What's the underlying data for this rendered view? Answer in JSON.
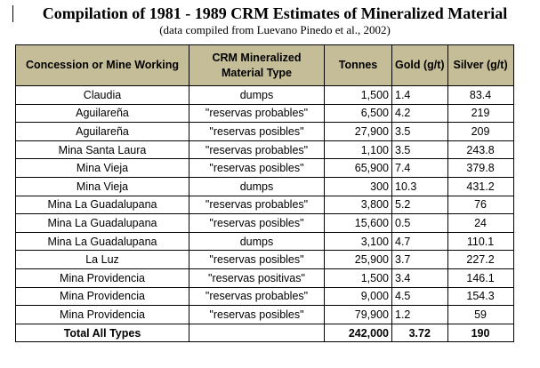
{
  "document": {
    "title": "Compilation of 1981 - 1989 CRM Estimates of Mineralized Material",
    "subtitle": "(data compiled from Luevano Pinedo et al., 2002)"
  },
  "table": {
    "header_fill_color": "#c4bd97",
    "headers": {
      "concession": "Concession or Mine Working",
      "material_type": "CRM Mineralized Material Type",
      "tonnes": "Tonnes",
      "gold": "Gold (g/t)",
      "silver": "Silver (g/t)"
    },
    "rows": [
      {
        "concession": "Claudia",
        "material_type": "dumps",
        "tonnes": "1,500",
        "gold": "1.4",
        "silver": "83.4"
      },
      {
        "concession": "Aguilareña",
        "material_type": "\"reservas probables\"",
        "tonnes": "6,500",
        "gold": "4.2",
        "silver": "219"
      },
      {
        "concession": "Aguilareña",
        "material_type": "\"reservas posibles\"",
        "tonnes": "27,900",
        "gold": "3.5",
        "silver": "209"
      },
      {
        "concession": "Mina Santa Laura",
        "material_type": "\"reservas probables\"",
        "tonnes": "1,100",
        "gold": "3.5",
        "silver": "243.8"
      },
      {
        "concession": "Mina Vieja",
        "material_type": "\"reservas posibles\"",
        "tonnes": "65,900",
        "gold": "7.4",
        "silver": "379.8"
      },
      {
        "concession": "Mina Vieja",
        "material_type": "dumps",
        "tonnes": "300",
        "gold": "10.3",
        "silver": "431.2"
      },
      {
        "concession": "Mina La Guadalupana",
        "material_type": "\"reservas probables\"",
        "tonnes": "3,800",
        "gold": "5.2",
        "silver": "76"
      },
      {
        "concession": "Mina La Guadalupana",
        "material_type": "\"reservas posibles\"",
        "tonnes": "15,600",
        "gold": "0.5",
        "silver": "24"
      },
      {
        "concession": "Mina La Guadalupana",
        "material_type": "dumps",
        "tonnes": "3,100",
        "gold": "4.7",
        "silver": "110.1"
      },
      {
        "concession": "La Luz",
        "material_type": "\"reservas posibles\"",
        "tonnes": "25,900",
        "gold": "3.7",
        "silver": "227.2"
      },
      {
        "concession": "Mina Providencia",
        "material_type": "\"reservas positivas\"",
        "tonnes": "1,500",
        "gold": "3.4",
        "silver": "146.1"
      },
      {
        "concession": "Mina Providencia",
        "material_type": "\"reservas probables\"",
        "tonnes": "9,000",
        "gold": "4.5",
        "silver": "154.3"
      },
      {
        "concession": "Mina Providencia",
        "material_type": "\"reservas posibles\"",
        "tonnes": "79,900",
        "gold": "1.2",
        "silver": "59"
      }
    ],
    "total": {
      "concession": "Total All Types",
      "material_type": "",
      "tonnes": "242,000",
      "gold": "3.72",
      "silver": "190"
    }
  }
}
